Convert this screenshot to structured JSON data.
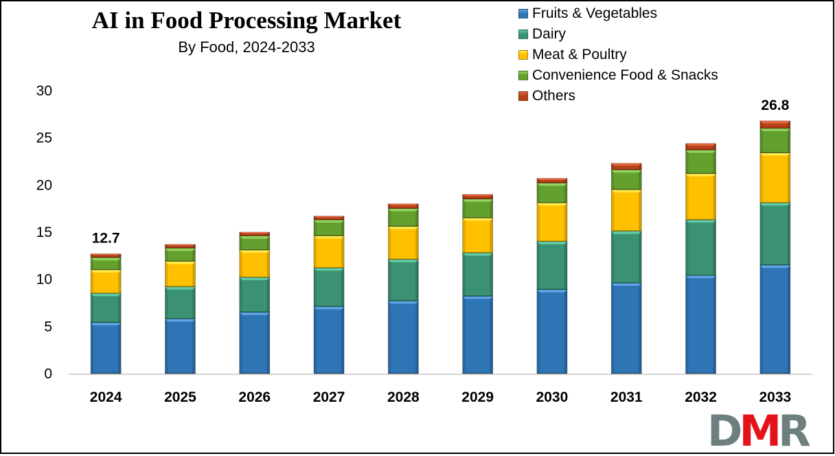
{
  "header": {
    "title": "AI in Food Processing Market",
    "subtitle": "By Food, 2024-2033"
  },
  "logo": {
    "text": "DMR",
    "letters": [
      "D",
      "M",
      "R"
    ],
    "colors": {
      "D": "#6d7f7f",
      "M": "#e3131b",
      "R": "#6d7f7f"
    }
  },
  "chart_data": {
    "type": "bar",
    "stacked": true,
    "title": "AI in Food Processing Market",
    "subtitle": "By Food, 2024-2033",
    "xlabel": "",
    "ylabel": "",
    "categories": [
      "2024",
      "2025",
      "2026",
      "2027",
      "2028",
      "2029",
      "2030",
      "2031",
      "2032",
      "2033"
    ],
    "ylim": [
      0,
      30
    ],
    "yticks": [
      0,
      5,
      10,
      15,
      20,
      25,
      30
    ],
    "grid": false,
    "legend_position": "top-right",
    "series": [
      {
        "name": "Fruits & Vegetables",
        "color": "#2e75b6",
        "highlight": "#5ea5e6",
        "values": [
          5.4,
          5.8,
          6.5,
          7.1,
          7.7,
          8.2,
          8.9,
          9.6,
          10.4,
          11.5
        ]
      },
      {
        "name": "Dairy",
        "color": "#3a9272",
        "highlight": "#62cba4",
        "values": [
          3.1,
          3.4,
          3.7,
          4.1,
          4.4,
          4.6,
          5.1,
          5.5,
          5.9,
          6.6
        ]
      },
      {
        "name": "Meat & Poultry",
        "color": "#ffc000",
        "highlight": "#ffe84a",
        "values": [
          2.5,
          2.7,
          2.9,
          3.4,
          3.5,
          3.7,
          4.1,
          4.4,
          4.9,
          5.3
        ]
      },
      {
        "name": "Convenience Food & Snacks",
        "color": "#64a02e",
        "highlight": "#94d45a",
        "values": [
          1.3,
          1.4,
          1.5,
          1.7,
          1.9,
          2.0,
          2.1,
          2.1,
          2.5,
          2.6
        ]
      },
      {
        "name": "Others",
        "color": "#b8401a",
        "highlight": "#e06a40",
        "values": [
          0.4,
          0.4,
          0.4,
          0.4,
          0.5,
          0.5,
          0.5,
          0.7,
          0.7,
          0.8
        ]
      }
    ],
    "annotations": [
      {
        "category": "2024",
        "text": "12.7",
        "value": 12.7
      },
      {
        "category": "2033",
        "text": "26.8",
        "value": 26.8
      }
    ]
  }
}
